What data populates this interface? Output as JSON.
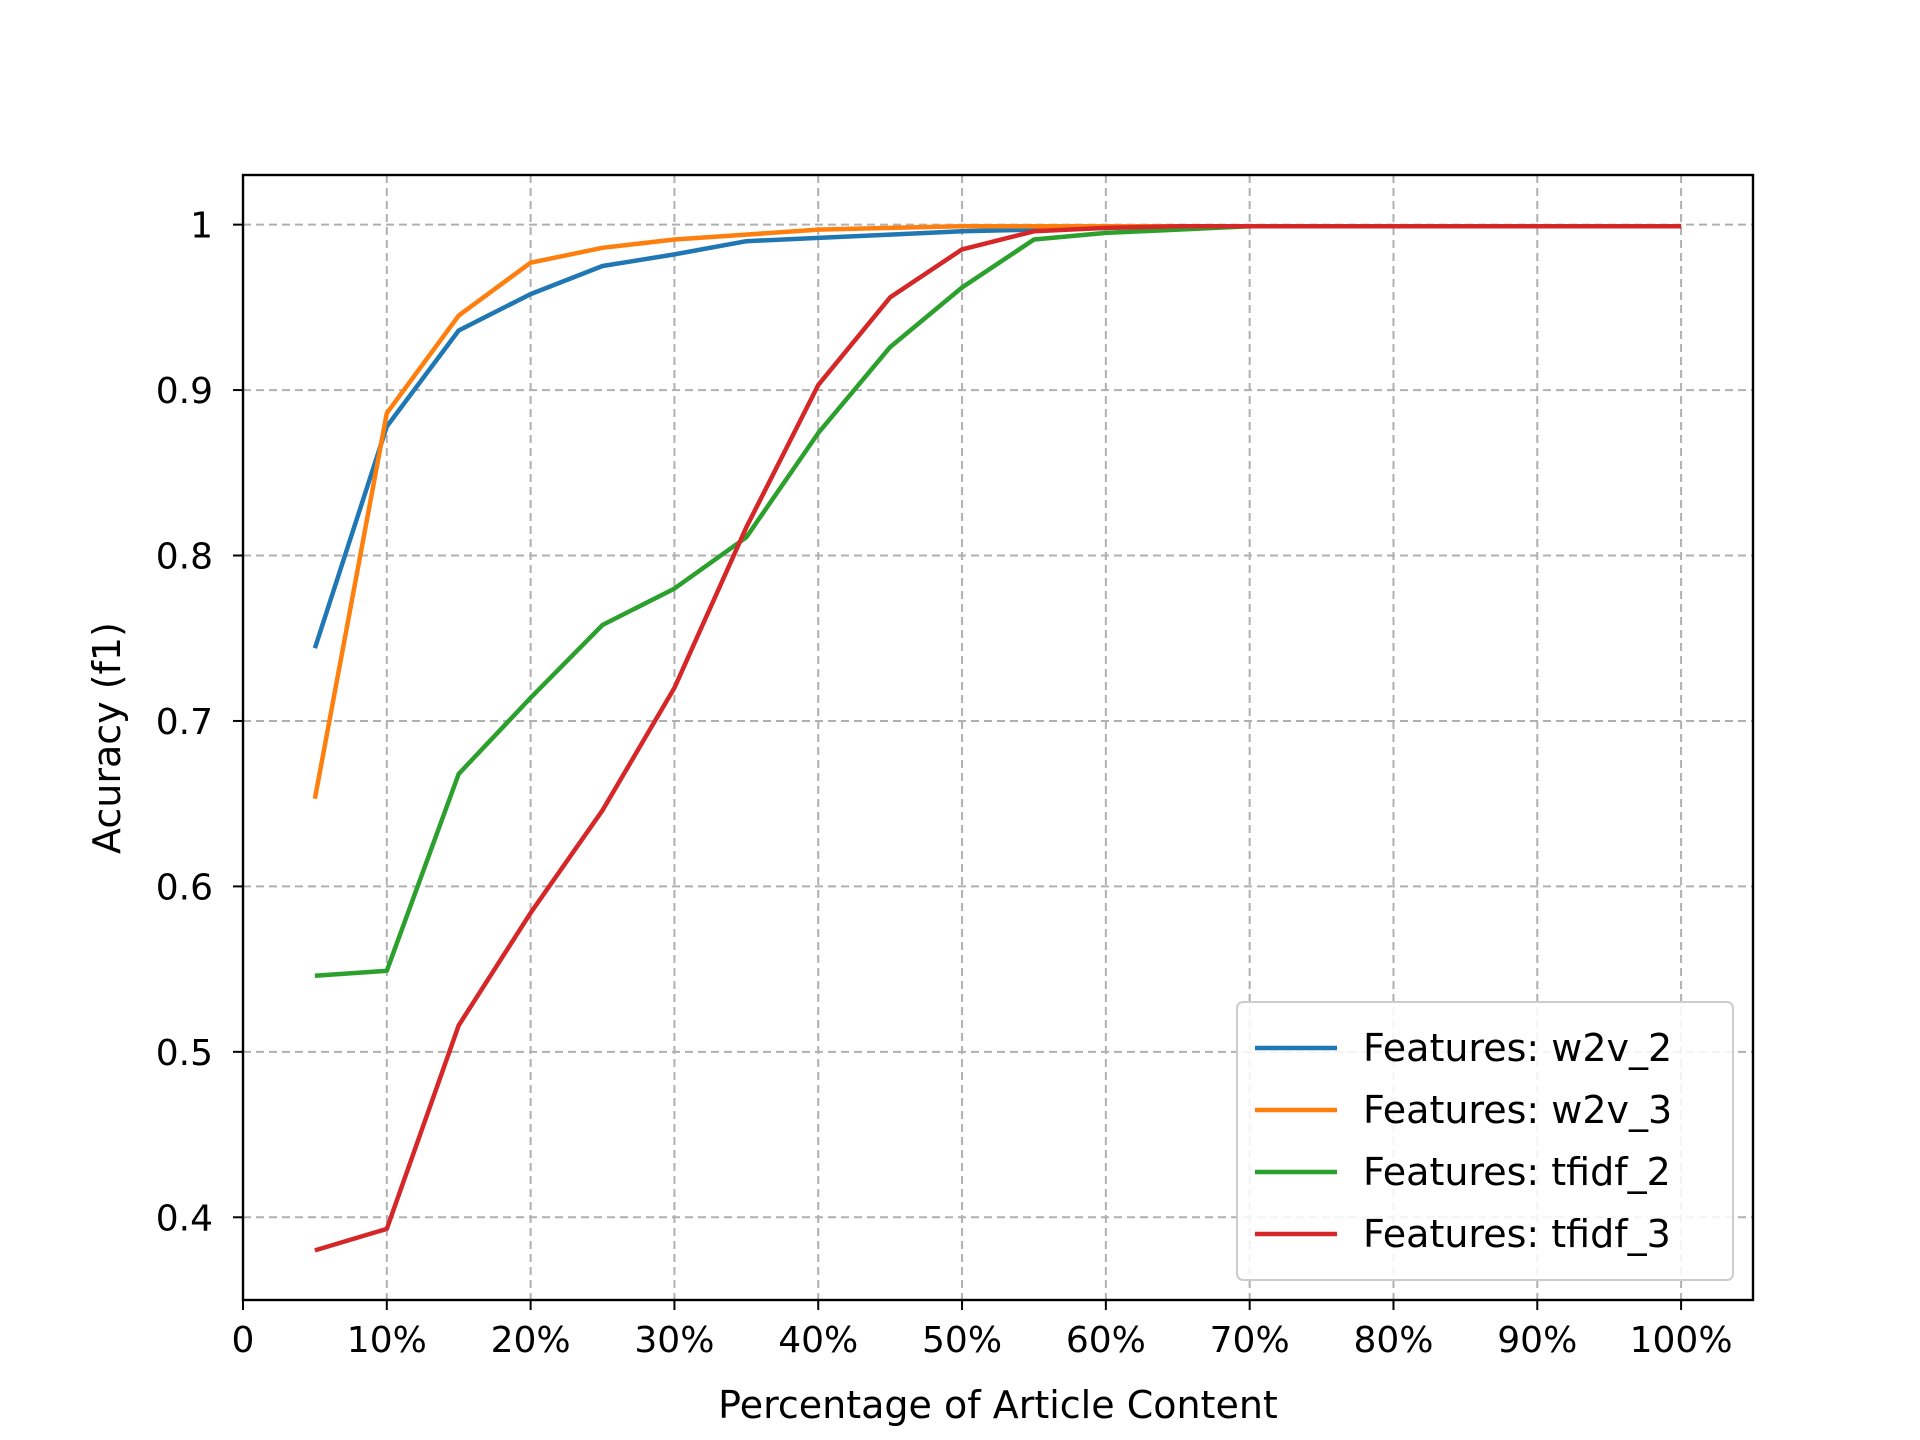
{
  "chart_data": {
    "type": "line",
    "title": "",
    "xlabel": "Percentage of Article Content",
    "ylabel": "Acuracy (f1)",
    "x": [
      5,
      10,
      15,
      20,
      25,
      30,
      35,
      40,
      45,
      50,
      55,
      60,
      65,
      70,
      75,
      80,
      85,
      90,
      95,
      100
    ],
    "xlim": [
      0,
      105
    ],
    "ylim": [
      0.35,
      1.03
    ],
    "xticks": [
      0,
      10,
      20,
      30,
      40,
      50,
      60,
      70,
      80,
      90,
      100
    ],
    "xtick_labels": [
      "0",
      "10%",
      "20%",
      "30%",
      "40%",
      "50%",
      "60%",
      "70%",
      "80%",
      "90%",
      "100%"
    ],
    "yticks": [
      0.4,
      0.5,
      0.6,
      0.7,
      0.8,
      0.9,
      1.0
    ],
    "ytick_labels": [
      "0.4",
      "0.5",
      "0.6",
      "0.7",
      "0.8",
      "0.9",
      "1"
    ],
    "grid": true,
    "legend_position": "bottom-right",
    "series": [
      {
        "name": "Features: w2v_2",
        "color": "#1f77b4",
        "values": [
          0.744,
          0.878,
          0.936,
          0.958,
          0.975,
          0.982,
          0.99,
          0.992,
          0.994,
          0.996,
          0.997,
          0.998,
          0.999,
          0.999,
          0.999,
          0.999,
          0.999,
          0.999,
          0.999,
          0.999
        ]
      },
      {
        "name": "Features: w2v_3",
        "color": "#ff7f0e",
        "values": [
          0.653,
          0.886,
          0.945,
          0.977,
          0.986,
          0.991,
          0.994,
          0.997,
          0.998,
          0.999,
          0.999,
          0.999,
          0.999,
          0.999,
          0.999,
          0.999,
          0.999,
          0.999,
          0.999,
          0.999
        ]
      },
      {
        "name": "Features: tfidf_2",
        "color": "#2ca02c",
        "values": [
          0.546,
          0.549,
          0.668,
          0.714,
          0.758,
          0.78,
          0.811,
          0.874,
          0.926,
          0.962,
          0.991,
          0.995,
          0.997,
          0.999,
          0.999,
          0.999,
          0.999,
          0.999,
          0.999,
          0.999
        ]
      },
      {
        "name": "Features: tfidf_3",
        "color": "#d62728",
        "values": [
          0.38,
          0.393,
          0.516,
          0.584,
          0.646,
          0.72,
          0.817,
          0.903,
          0.956,
          0.985,
          0.996,
          0.998,
          0.999,
          0.999,
          0.999,
          0.999,
          0.999,
          0.999,
          0.999,
          0.999
        ]
      }
    ]
  }
}
